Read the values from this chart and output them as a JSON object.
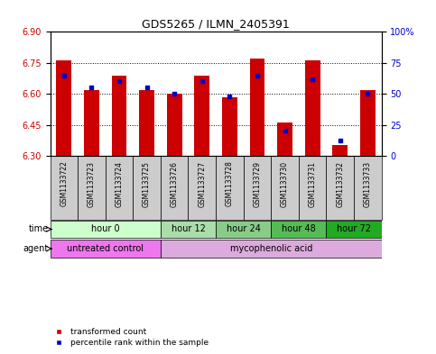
{
  "title": "GDS5265 / ILMN_2405391",
  "samples": [
    "GSM1133722",
    "GSM1133723",
    "GSM1133724",
    "GSM1133725",
    "GSM1133726",
    "GSM1133727",
    "GSM1133728",
    "GSM1133729",
    "GSM1133730",
    "GSM1133731",
    "GSM1133732",
    "GSM1133733"
  ],
  "red_values": [
    6.76,
    6.62,
    6.69,
    6.62,
    6.6,
    6.69,
    6.585,
    6.77,
    6.46,
    6.76,
    6.35,
    6.62
  ],
  "blue_values": [
    65,
    55,
    60,
    55,
    50,
    60,
    48,
    65,
    20,
    62,
    12,
    50
  ],
  "y_min": 6.3,
  "y_max": 6.9,
  "y_ticks_left": [
    6.3,
    6.45,
    6.6,
    6.75,
    6.9
  ],
  "y_ticks_right": [
    0,
    25,
    50,
    75,
    100
  ],
  "bar_color": "#cc0000",
  "dot_color": "#0000cc",
  "bar_bottom": 6.3,
  "time_groups": [
    {
      "label": "hour 0",
      "start": 0,
      "end": 4
    },
    {
      "label": "hour 12",
      "start": 4,
      "end": 6
    },
    {
      "label": "hour 24",
      "start": 6,
      "end": 8
    },
    {
      "label": "hour 48",
      "start": 8,
      "end": 10
    },
    {
      "label": "hour 72",
      "start": 10,
      "end": 12
    }
  ],
  "time_colors": [
    "#ccffcc",
    "#aaddaa",
    "#88cc88",
    "#55bb55",
    "#22aa22"
  ],
  "agent_groups": [
    {
      "label": "untreated control",
      "start": 0,
      "end": 4
    },
    {
      "label": "mycophenolic acid",
      "start": 4,
      "end": 12
    }
  ],
  "agent_colors": [
    "#ee77ee",
    "#ddaadd"
  ],
  "legend_red": "transformed count",
  "legend_blue": "percentile rank within the sample",
  "label_time": "time",
  "label_agent": "agent",
  "background_color": "#ffffff",
  "tick_color_left": "#cc0000",
  "tick_color_right": "#0000cc",
  "bar_width": 0.55,
  "sample_box_color": "#cccccc",
  "grid_color": "#555555"
}
